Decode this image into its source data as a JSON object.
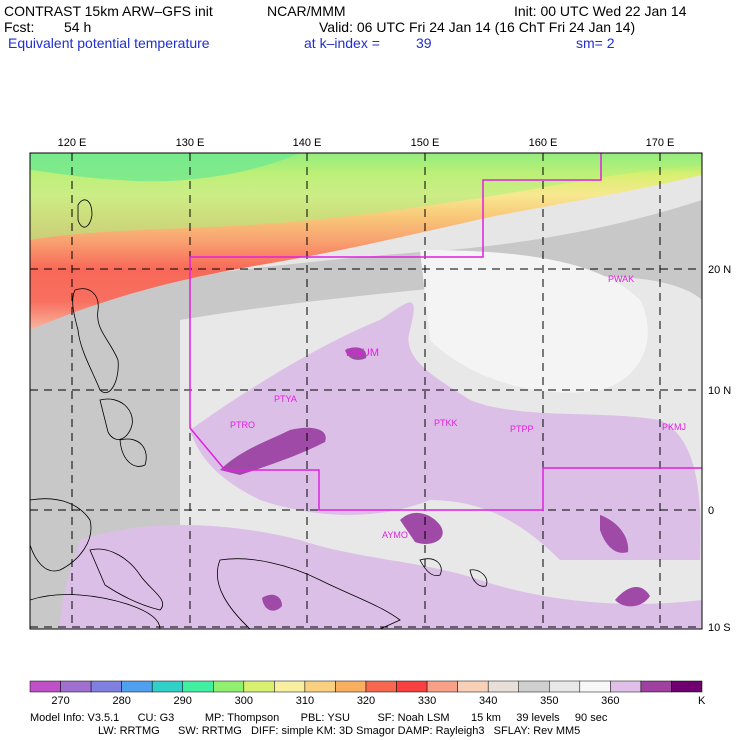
{
  "header": {
    "title": "CONTRAST 15km ARW–GFS init",
    "org": "NCAR/MMM",
    "init": "Init: 00 UTC Wed 22 Jan 14",
    "fcst_label": "Fcst:",
    "fcst_value": "54 h",
    "valid": "Valid: 06 UTC Fri 24 Jan 14 (16 ChT Fri 24 Jan 14)",
    "field": "Equivalent potential temperature",
    "level": "at k–index =",
    "level_value": "39",
    "smooth": "sm= 2"
  },
  "map": {
    "lon_labels": [
      "120 E",
      "130 E",
      "140 E",
      "150 E",
      "160 E",
      "170 E"
    ],
    "lat_labels": [
      "20 N",
      "10 N",
      "0",
      "10 S"
    ],
    "stations": [
      {
        "name": "PWAK"
      },
      {
        "name": "PGUM"
      },
      {
        "name": "PTYA"
      },
      {
        "name": "PTRO"
      },
      {
        "name": "PTKK"
      },
      {
        "name": "PTPP"
      },
      {
        "name": "PKMJ"
      },
      {
        "name": "AYMO"
      }
    ]
  },
  "colorbar": {
    "unit": "K",
    "ticks": [
      "270",
      "280",
      "290",
      "300",
      "310",
      "320",
      "330",
      "340",
      "350",
      "360"
    ],
    "colors": [
      "#c050c8",
      "#a070d0",
      "#8080e0",
      "#50a0f0",
      "#30d0c8",
      "#40f0a0",
      "#90f070",
      "#d8f070",
      "#f8f0a0",
      "#f8d080",
      "#f8b060",
      "#f86850",
      "#f84040",
      "#f8a088",
      "#f8d0b8",
      "#e8e0d8",
      "#d0d0d0",
      "#e8e8e8",
      "#f8f8f8",
      "#e0c0e8",
      "#a040a0",
      "#700070"
    ]
  },
  "model_info": {
    "line1": "Model Info: V3.5.1      CU: G3          MP: Thompson       PBL: YSU         SF: Noah LSM       15 km     39 levels     90 sec",
    "line2": "LW: RRTMG      SW: RRTMG   DIFF: simple KM: 3D Smagor DAMP: Rayleigh3   SFLAY: Rev MM5"
  }
}
